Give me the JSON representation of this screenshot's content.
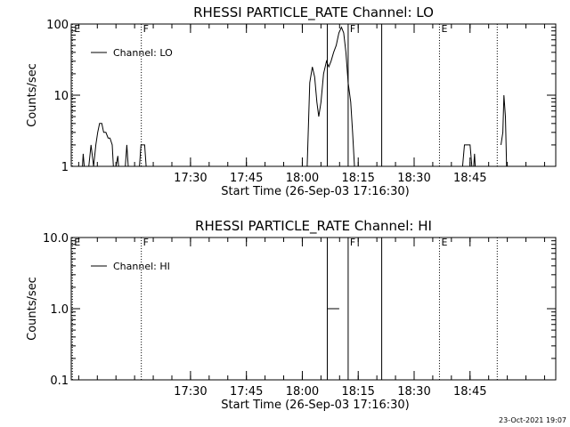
{
  "stamp": "23-Oct-2021 19:07",
  "chart_data": [
    {
      "type": "line",
      "title": "RHESSI PARTICLE_RATE Channel: LO",
      "xlabel": "Start Time (26-Sep-03 17:16:30)",
      "ylabel": "Counts/sec",
      "yscale": "log",
      "xlim": [
        -18.5,
        111.5
      ],
      "ylim": [
        1,
        100
      ],
      "xticks": [
        {
          "value": 13.5,
          "label": "17:30"
        },
        {
          "value": 28.5,
          "label": "17:45"
        },
        {
          "value": 43.5,
          "label": "18:00"
        },
        {
          "value": 58.5,
          "label": "18:15"
        },
        {
          "value": 73.5,
          "label": "18:30"
        },
        {
          "value": 88.5,
          "label": "18:45"
        }
      ],
      "yticks": [
        {
          "value": 1,
          "label": "1"
        },
        {
          "value": 10,
          "label": "10"
        },
        {
          "value": 100,
          "label": "100"
        }
      ],
      "legend": {
        "position": "top-left",
        "entries": [
          "Channel: LO"
        ]
      },
      "series": [
        {
          "name": "Channel: LO",
          "segments": [
            [
              [
                -15.5,
                1
              ],
              [
                -15.3,
                1.5
              ],
              [
                -15,
                1
              ],
              [
                -14.5,
                1
              ]
            ],
            [
              [
                -13.8,
                1
              ],
              [
                -13.2,
                2
              ],
              [
                -12.5,
                1
              ],
              [
                -11.9,
                2
              ],
              [
                -11.4,
                3
              ],
              [
                -10.9,
                4
              ],
              [
                -10.3,
                4
              ],
              [
                -9.8,
                3
              ],
              [
                -9.2,
                3
              ],
              [
                -8.6,
                2.5
              ],
              [
                -8.1,
                2.5
              ],
              [
                -7.5,
                2
              ],
              [
                -7.2,
                1
              ]
            ],
            [
              [
                -6.5,
                1
              ],
              [
                -6,
                1.4
              ],
              [
                -5.8,
                1
              ]
            ],
            [
              [
                -4,
                1
              ],
              [
                -3.6,
                2
              ],
              [
                -3.2,
                1
              ]
            ],
            [
              [
                -0.2,
                1
              ],
              [
                0.2,
                2
              ],
              [
                1.2,
                2
              ],
              [
                1.6,
                1
              ]
            ],
            [
              [
                44.8,
                1
              ],
              [
                45.5,
                15
              ],
              [
                46.2,
                25
              ],
              [
                46.8,
                18
              ],
              [
                47.4,
                8
              ],
              [
                47.9,
                5
              ],
              [
                48.5,
                8
              ],
              [
                49.2,
                20
              ],
              [
                50,
                30
              ],
              [
                50.6,
                25
              ],
              [
                51.2,
                30
              ],
              [
                51.9,
                40
              ],
              [
                52.6,
                50
              ],
              [
                53.3,
                75
              ],
              [
                54,
                90
              ],
              [
                54.6,
                75
              ],
              [
                55.2,
                40
              ],
              [
                55.8,
                15
              ],
              [
                56.5,
                8
              ],
              [
                57,
                3
              ],
              [
                57.5,
                1
              ]
            ],
            [
              [
                86.5,
                1
              ],
              [
                87,
                2
              ],
              [
                88.5,
                2
              ],
              [
                89,
                1
              ]
            ],
            [
              [
                89.5,
                1
              ],
              [
                89.7,
                1.5
              ],
              [
                89.9,
                1
              ]
            ],
            [
              [
                96.8,
                2
              ],
              [
                97.3,
                3
              ],
              [
                97.6,
                10
              ],
              [
                98,
                5
              ],
              [
                98.3,
                1
              ]
            ]
          ]
        }
      ],
      "markers": [
        {
          "x": -18.2,
          "label": "E",
          "style": "dotted"
        },
        {
          "x": 0.3,
          "label": "F",
          "style": "dotted"
        },
        {
          "x": 50.2,
          "label": "",
          "style": "solid"
        },
        {
          "x": 55.8,
          "label": "F",
          "style": "solid"
        },
        {
          "x": 64.8,
          "label": "",
          "style": "solid"
        },
        {
          "x": 80.3,
          "label": "E",
          "style": "dotted"
        },
        {
          "x": 95.8,
          "label": "",
          "style": "dotted"
        }
      ]
    },
    {
      "type": "line",
      "title": "RHESSI PARTICLE_RATE Channel: HI",
      "xlabel": "Start Time (26-Sep-03 17:16:30)",
      "ylabel": "Counts/sec",
      "yscale": "log",
      "xlim": [
        -18.5,
        111.5
      ],
      "ylim": [
        0.1,
        10
      ],
      "xticks": [
        {
          "value": 13.5,
          "label": "17:30"
        },
        {
          "value": 28.5,
          "label": "17:45"
        },
        {
          "value": 43.5,
          "label": "18:00"
        },
        {
          "value": 58.5,
          "label": "18:15"
        },
        {
          "value": 73.5,
          "label": "18:30"
        },
        {
          "value": 88.5,
          "label": "18:45"
        }
      ],
      "yticks": [
        {
          "value": 0.1,
          "label": "0.1"
        },
        {
          "value": 1,
          "label": "1.0"
        },
        {
          "value": 10,
          "label": "10.0"
        }
      ],
      "legend": {
        "position": "top-left",
        "entries": [
          "Channel: HI"
        ]
      },
      "series": [
        {
          "name": "Channel: HI",
          "segments": [
            [
              [
                50.3,
                1
              ],
              [
                53.4,
                1
              ]
            ]
          ]
        }
      ],
      "markers": [
        {
          "x": -18.2,
          "label": "E",
          "style": "dotted"
        },
        {
          "x": 0.3,
          "label": "F",
          "style": "dotted"
        },
        {
          "x": 50.2,
          "label": "",
          "style": "solid"
        },
        {
          "x": 55.8,
          "label": "F",
          "style": "solid"
        },
        {
          "x": 64.8,
          "label": "",
          "style": "solid"
        },
        {
          "x": 80.3,
          "label": "E",
          "style": "dotted"
        },
        {
          "x": 95.8,
          "label": "",
          "style": "dotted"
        }
      ]
    }
  ]
}
